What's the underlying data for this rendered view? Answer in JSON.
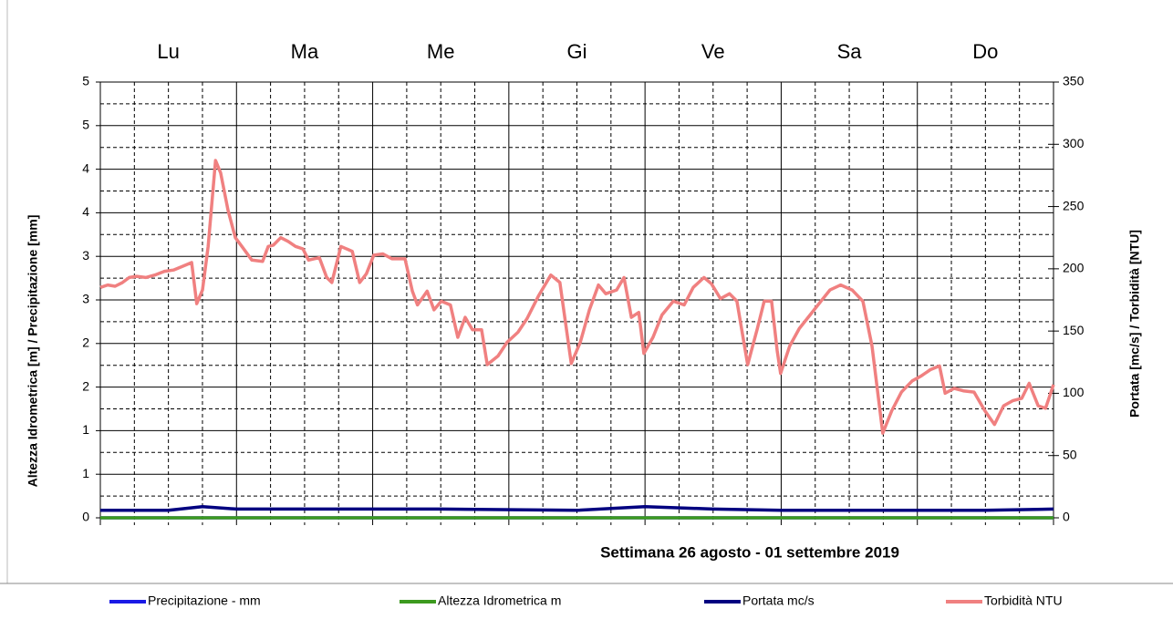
{
  "chart_data": {
    "type": "line",
    "title": "Settimana 26 agosto - 01  settembre  2019",
    "y_label": "Altezza Idrometrica [m] / Precipitazione [mm]",
    "y2_label": "Portata [mc/s] / Torbidità [NTU]",
    "categories": [
      "Lu",
      "Ma",
      "Me",
      "Gi",
      "Ve",
      "Sa",
      "Do"
    ],
    "xlim": [
      0,
      168
    ],
    "ylim": [
      0,
      5
    ],
    "yticks": [
      0,
      {
        "value": 0.5,
        "label": "1"
      },
      1,
      {
        "value": 1.5,
        "label": "2"
      },
      2,
      {
        "value": 2.5,
        "label": "3"
      },
      3,
      {
        "value": 3.5,
        "label": "4"
      },
      4,
      {
        "value": 4.5,
        "label": "5"
      },
      5
    ],
    "y2lim": [
      0,
      350
    ],
    "y2ticks": [
      0,
      50,
      100,
      150,
      200,
      250,
      300,
      350
    ],
    "grid": true,
    "series": [
      {
        "name": "Precipitazione - mm",
        "color": "#1a1ae6",
        "x": [
          0,
          168
        ],
        "values": [
          0,
          0
        ]
      },
      {
        "name": "Altezza Idrometrica m",
        "color": "#3c9a1f",
        "x": [
          0,
          168
        ],
        "values": [
          0,
          0
        ]
      },
      {
        "name": "Portata mc/s",
        "color": "#000080",
        "axis": "y2",
        "x": [
          0,
          12,
          18,
          24,
          48,
          60,
          84,
          96,
          108,
          120,
          144,
          156,
          168
        ],
        "values": [
          6,
          6,
          9,
          7,
          7,
          7,
          6,
          9,
          7,
          6,
          6,
          6,
          7
        ]
      },
      {
        "name": "Torbidità NTU",
        "color": "#f08080",
        "axis": "y2",
        "x": [
          0,
          1.3,
          2.6,
          3.9,
          5.1,
          6.4,
          8.0,
          9.6,
          11.3,
          12.9,
          14.5,
          16.1,
          17.0,
          18.0,
          19.0,
          20.3,
          21.2,
          22.5,
          23.8,
          25.1,
          26.7,
          28.6,
          29.6,
          30.5,
          31.8,
          33.1,
          34.4,
          35.7,
          36.7,
          38.6,
          39.9,
          40.8,
          42.4,
          44.4,
          45.7,
          46.9,
          48.2,
          49.8,
          51.4,
          53.7,
          55.0,
          55.9,
          57.6,
          58.8,
          60.1,
          61.7,
          63.0,
          64.3,
          65.6,
          67.2,
          68.2,
          70.1,
          71.7,
          73.6,
          75.2,
          77.2,
          79.4,
          81.0,
          83.0,
          84.6,
          86.2,
          87.8,
          89.1,
          91.0,
          92.3,
          93.6,
          94.9,
          95.8,
          97.4,
          99.0,
          101.0,
          102.9,
          104.5,
          106.4,
          107.7,
          109.3,
          110.9,
          112.2,
          114.1,
          115.8,
          117.0,
          118.3,
          119.3,
          119.9,
          121.5,
          123.2,
          125.1,
          127.0,
          128.6,
          130.5,
          132.5,
          134.4,
          136.0,
          137.9,
          139.5,
          141.2,
          143.1,
          144.7,
          146.3,
          147.9,
          148.9,
          150.5,
          152.1,
          154.0,
          155.9,
          157.6,
          159.2,
          160.8,
          162.4,
          163.7,
          165.3,
          166.6,
          168
        ],
        "values": [
          185,
          187,
          186,
          189,
          193,
          194,
          193,
          195,
          198,
          199,
          202,
          205,
          172,
          183,
          218,
          287,
          277,
          247,
          225,
          217,
          207,
          206,
          218,
          219,
          225,
          222,
          218,
          216,
          207,
          209,
          193,
          189,
          218,
          214,
          189,
          196,
          211,
          212,
          208,
          208,
          182,
          171,
          182,
          167,
          174,
          171,
          145,
          161,
          151,
          151,
          123,
          130,
          141,
          149,
          160,
          178,
          195,
          189,
          124,
          141,
          167,
          187,
          180,
          183,
          193,
          161,
          165,
          132,
          145,
          163,
          174,
          171,
          185,
          193,
          188,
          176,
          180,
          174,
          123,
          152,
          174,
          174,
          134,
          116,
          138,
          152,
          163,
          174,
          183,
          187,
          183,
          174,
          138,
          68,
          86,
          101,
          110,
          114,
          119,
          122,
          100,
          104,
          102,
          101,
          86,
          75,
          90,
          94,
          96,
          108,
          90,
          88,
          107
        ]
      }
    ]
  }
}
